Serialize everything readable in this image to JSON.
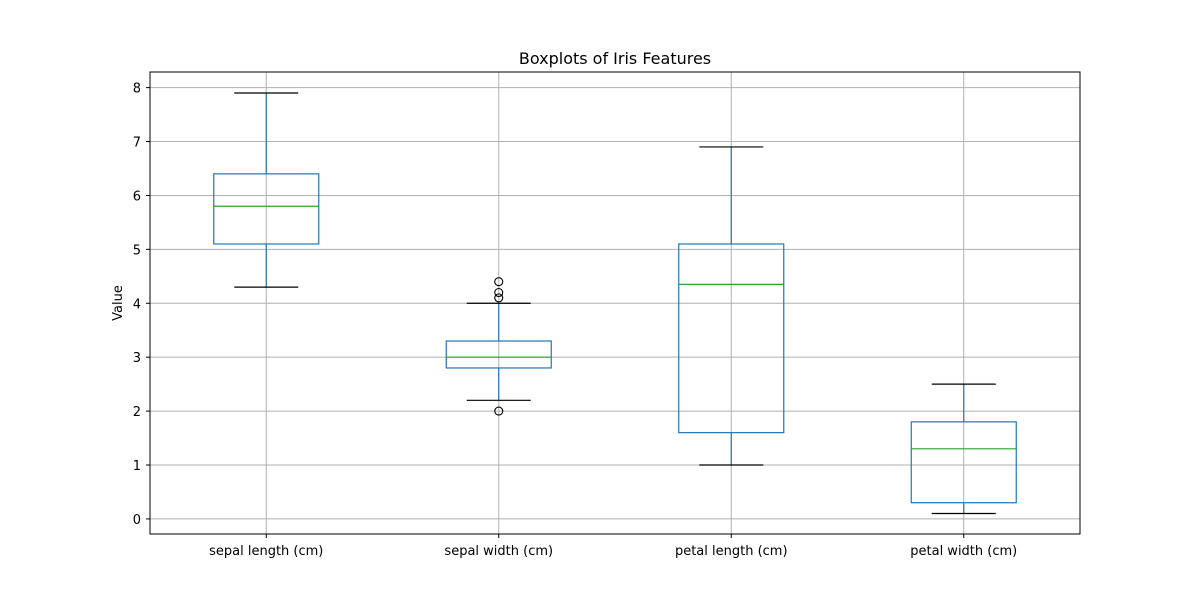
{
  "chart_data": {
    "type": "box",
    "title": "Boxplots of Iris Features",
    "xlabel": "",
    "ylabel": "Value",
    "ylim": [
      -0.28,
      8.29
    ],
    "yticks": [
      0,
      1,
      2,
      3,
      4,
      5,
      6,
      7,
      8
    ],
    "grid": true,
    "categories": [
      "sepal length (cm)",
      "sepal width (cm)",
      "petal length (cm)",
      "petal width (cm)"
    ],
    "boxes": [
      {
        "category": "sepal length (cm)",
        "whisker_low": 4.3,
        "q1": 5.1,
        "median": 5.8,
        "q3": 6.4,
        "whisker_high": 7.9,
        "outliers": []
      },
      {
        "category": "sepal width (cm)",
        "whisker_low": 2.2,
        "q1": 2.8,
        "median": 3.0,
        "q3": 3.3,
        "whisker_high": 4.0,
        "outliers": [
          2.0,
          4.1,
          4.2,
          4.4
        ]
      },
      {
        "category": "petal length (cm)",
        "whisker_low": 1.0,
        "q1": 1.6,
        "median": 4.35,
        "q3": 5.1,
        "whisker_high": 6.9,
        "outliers": []
      },
      {
        "category": "petal width (cm)",
        "whisker_low": 0.1,
        "q1": 0.3,
        "median": 1.3,
        "q3": 1.8,
        "whisker_high": 2.5,
        "outliers": []
      }
    ],
    "colors": {
      "box": "#1f77b4",
      "median": "#2ca02c",
      "whisker_cap": "#000000",
      "grid": "#b0b0b0",
      "outlier": "#000000"
    }
  }
}
